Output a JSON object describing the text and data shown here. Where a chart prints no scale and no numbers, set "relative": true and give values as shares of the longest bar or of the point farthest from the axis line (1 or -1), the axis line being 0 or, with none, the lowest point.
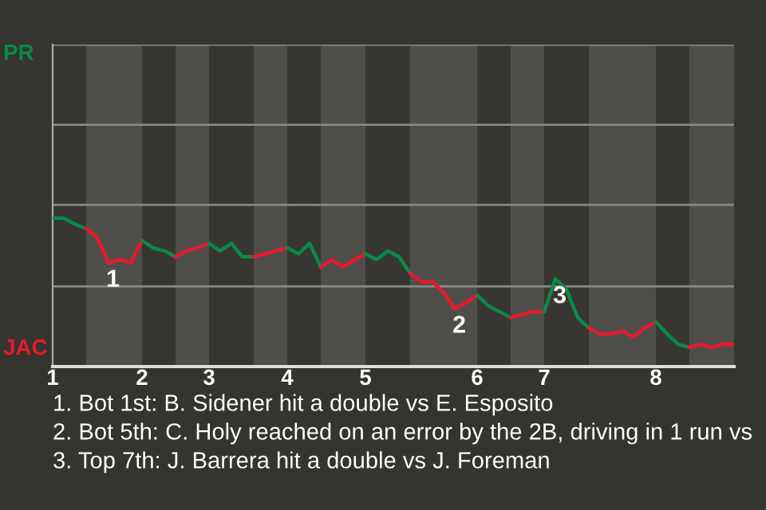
{
  "chart_data": {
    "type": "line",
    "relative": true,
    "categories": [
      "1",
      null,
      null,
      null,
      null,
      null,
      null,
      null,
      "2",
      null,
      null,
      null,
      null,
      null,
      "3",
      null,
      null,
      null,
      null,
      null,
      null,
      "4",
      null,
      null,
      null,
      null,
      null,
      null,
      "5",
      null,
      null,
      null,
      null,
      null,
      null,
      null,
      null,
      null,
      "6",
      null,
      null,
      null,
      null,
      null,
      "7",
      null,
      null,
      null,
      null,
      null,
      null,
      null,
      null,
      null,
      "8",
      null,
      null,
      null,
      null,
      null,
      null,
      null
    ],
    "series": [
      {
        "color": "#0a8a4a",
        "values": [
          1,
          1,
          0.96,
          0.93,
          null,
          null,
          null,
          null,
          null,
          null,
          null,
          null,
          null,
          null,
          null,
          null,
          null,
          null,
          null,
          null,
          null,
          null,
          null,
          null,
          null,
          null,
          null,
          null,
          null,
          null,
          null,
          null,
          null,
          null,
          null,
          null,
          null,
          null,
          null,
          null,
          null,
          null,
          null,
          null,
          null,
          null,
          null,
          null,
          null,
          null,
          null,
          null,
          null,
          null,
          null,
          null,
          null,
          null,
          null,
          null,
          null,
          null
        ]
      },
      {
        "color": "#e8192c",
        "values": [
          null,
          null,
          null,
          0.93,
          0.87,
          0.7,
          0.72,
          0.7,
          0.85,
          null,
          null,
          null,
          null,
          null,
          null,
          null,
          null,
          null,
          null,
          null,
          null,
          null,
          null,
          null,
          null,
          null,
          null,
          null,
          null,
          null,
          null,
          null,
          null,
          null,
          null,
          null,
          null,
          null,
          null,
          null,
          null,
          null,
          null,
          null,
          null,
          null,
          null,
          null,
          null,
          null,
          null,
          null,
          null,
          null,
          null,
          null,
          null,
          null,
          null,
          null,
          null,
          null
        ]
      },
      {
        "color": "#0a8a4a",
        "values": [
          null,
          null,
          null,
          null,
          null,
          null,
          null,
          null,
          0.85,
          0.8,
          0.78,
          0.74,
          null,
          null,
          null,
          null,
          null,
          null,
          null,
          null,
          null,
          null,
          null,
          null,
          null,
          null,
          null,
          null,
          null,
          null,
          null,
          null,
          null,
          null,
          null,
          null,
          null,
          null,
          null,
          null,
          null,
          null,
          null,
          null,
          null,
          null,
          null,
          null,
          null,
          null,
          null,
          null,
          null,
          null,
          null,
          null,
          null,
          null,
          null,
          null,
          null,
          null
        ]
      },
      {
        "color": "#e8192c",
        "values": [
          null,
          null,
          null,
          null,
          null,
          null,
          null,
          null,
          null,
          null,
          null,
          0.74,
          0.78,
          0.8,
          0.83,
          null,
          null,
          null,
          null,
          null,
          null,
          null,
          null,
          null,
          null,
          null,
          null,
          null,
          null,
          null,
          null,
          null,
          null,
          null,
          null,
          null,
          null,
          null,
          null,
          null,
          null,
          null,
          null,
          null,
          null,
          null,
          null,
          null,
          null,
          null,
          null,
          null,
          null,
          null,
          null,
          null,
          null,
          null,
          null,
          null,
          null,
          null
        ]
      },
      {
        "color": "#0a8a4a",
        "values": [
          null,
          null,
          null,
          null,
          null,
          null,
          null,
          null,
          null,
          null,
          null,
          null,
          null,
          null,
          0.83,
          0.78,
          0.83,
          0.74,
          0.74,
          null,
          null,
          null,
          null,
          null,
          null,
          null,
          null,
          null,
          null,
          null,
          null,
          null,
          null,
          null,
          null,
          null,
          null,
          null,
          null,
          null,
          null,
          null,
          null,
          null,
          null,
          null,
          null,
          null,
          null,
          null,
          null,
          null,
          null,
          null,
          null,
          null,
          null,
          null,
          null,
          null,
          null,
          null
        ]
      },
      {
        "color": "#e8192c",
        "values": [
          null,
          null,
          null,
          null,
          null,
          null,
          null,
          null,
          null,
          null,
          null,
          null,
          null,
          null,
          null,
          null,
          null,
          null,
          0.74,
          0.76,
          0.78,
          0.8,
          null,
          null,
          null,
          null,
          null,
          null,
          null,
          null,
          null,
          null,
          null,
          null,
          null,
          null,
          null,
          null,
          null,
          null,
          null,
          null,
          null,
          null,
          null,
          null,
          null,
          null,
          null,
          null,
          null,
          null,
          null,
          null,
          null,
          null,
          null,
          null,
          null,
          null,
          null,
          null
        ]
      },
      {
        "color": "#0a8a4a",
        "values": [
          null,
          null,
          null,
          null,
          null,
          null,
          null,
          null,
          null,
          null,
          null,
          null,
          null,
          null,
          null,
          null,
          null,
          null,
          null,
          null,
          null,
          0.8,
          0.76,
          0.83,
          0.67,
          null,
          null,
          null,
          null,
          null,
          null,
          null,
          null,
          null,
          null,
          null,
          null,
          null,
          null,
          null,
          null,
          null,
          null,
          null,
          null,
          null,
          null,
          null,
          null,
          null,
          null,
          null,
          null,
          null,
          null,
          null,
          null,
          null,
          null,
          null,
          null,
          null
        ]
      },
      {
        "color": "#e8192c",
        "values": [
          null,
          null,
          null,
          null,
          null,
          null,
          null,
          null,
          null,
          null,
          null,
          null,
          null,
          null,
          null,
          null,
          null,
          null,
          null,
          null,
          null,
          null,
          null,
          null,
          0.67,
          0.72,
          0.67,
          0.72,
          0.76,
          null,
          null,
          null,
          null,
          null,
          null,
          null,
          null,
          null,
          null,
          null,
          null,
          null,
          null,
          null,
          null,
          null,
          null,
          null,
          null,
          null,
          null,
          null,
          null,
          null,
          null,
          null,
          null,
          null,
          null,
          null,
          null,
          null
        ]
      },
      {
        "color": "#0a8a4a",
        "values": [
          null,
          null,
          null,
          null,
          null,
          null,
          null,
          null,
          null,
          null,
          null,
          null,
          null,
          null,
          null,
          null,
          null,
          null,
          null,
          null,
          null,
          null,
          null,
          null,
          null,
          null,
          null,
          null,
          0.76,
          0.72,
          0.78,
          0.74,
          0.63,
          null,
          null,
          null,
          null,
          null,
          null,
          null,
          null,
          null,
          null,
          null,
          null,
          null,
          null,
          null,
          null,
          null,
          null,
          null,
          null,
          null,
          null,
          null,
          null,
          null,
          null,
          null,
          null,
          null
        ]
      },
      {
        "color": "#e8192c",
        "values": [
          null,
          null,
          null,
          null,
          null,
          null,
          null,
          null,
          null,
          null,
          null,
          null,
          null,
          null,
          null,
          null,
          null,
          null,
          null,
          null,
          null,
          null,
          null,
          null,
          null,
          null,
          null,
          null,
          null,
          null,
          null,
          null,
          0.63,
          0.57,
          0.57,
          0.5,
          0.39,
          0.43,
          0.48,
          null,
          null,
          null,
          null,
          null,
          null,
          null,
          null,
          null,
          null,
          null,
          null,
          null,
          null,
          null,
          null,
          null,
          null,
          null,
          null,
          null,
          null,
          null
        ]
      },
      {
        "color": "#0a8a4a",
        "values": [
          null,
          null,
          null,
          null,
          null,
          null,
          null,
          null,
          null,
          null,
          null,
          null,
          null,
          null,
          null,
          null,
          null,
          null,
          null,
          null,
          null,
          null,
          null,
          null,
          null,
          null,
          null,
          null,
          null,
          null,
          null,
          null,
          null,
          null,
          null,
          null,
          null,
          null,
          0.48,
          0.41,
          0.37,
          0.33,
          null,
          null,
          null,
          null,
          null,
          null,
          null,
          null,
          null,
          null,
          null,
          null,
          null,
          null,
          null,
          null,
          null,
          null,
          null,
          null
        ]
      },
      {
        "color": "#e8192c",
        "values": [
          null,
          null,
          null,
          null,
          null,
          null,
          null,
          null,
          null,
          null,
          null,
          null,
          null,
          null,
          null,
          null,
          null,
          null,
          null,
          null,
          null,
          null,
          null,
          null,
          null,
          null,
          null,
          null,
          null,
          null,
          null,
          null,
          null,
          null,
          null,
          null,
          null,
          null,
          null,
          null,
          null,
          0.33,
          0.35,
          0.37,
          0.37,
          null,
          null,
          null,
          null,
          null,
          null,
          null,
          null,
          null,
          null,
          null,
          null,
          null,
          null,
          null,
          null,
          null
        ]
      },
      {
        "color": "#0a8a4a",
        "values": [
          null,
          null,
          null,
          null,
          null,
          null,
          null,
          null,
          null,
          null,
          null,
          null,
          null,
          null,
          null,
          null,
          null,
          null,
          null,
          null,
          null,
          null,
          null,
          null,
          null,
          null,
          null,
          null,
          null,
          null,
          null,
          null,
          null,
          null,
          null,
          null,
          null,
          null,
          null,
          null,
          null,
          null,
          null,
          null,
          0.37,
          0.59,
          0.52,
          0.33,
          0.26,
          null,
          null,
          null,
          null,
          null,
          null,
          null,
          null,
          null,
          null,
          null,
          null,
          null
        ]
      },
      {
        "color": "#e8192c",
        "values": [
          null,
          null,
          null,
          null,
          null,
          null,
          null,
          null,
          null,
          null,
          null,
          null,
          null,
          null,
          null,
          null,
          null,
          null,
          null,
          null,
          null,
          null,
          null,
          null,
          null,
          null,
          null,
          null,
          null,
          null,
          null,
          null,
          null,
          null,
          null,
          null,
          null,
          null,
          null,
          null,
          null,
          null,
          null,
          null,
          null,
          null,
          null,
          null,
          0.26,
          0.22,
          0.22,
          0.24,
          0.2,
          0.26,
          0.3,
          null,
          null,
          null,
          null,
          null,
          null,
          null
        ]
      },
      {
        "color": "#0a8a4a",
        "values": [
          null,
          null,
          null,
          null,
          null,
          null,
          null,
          null,
          null,
          null,
          null,
          null,
          null,
          null,
          null,
          null,
          null,
          null,
          null,
          null,
          null,
          null,
          null,
          null,
          null,
          null,
          null,
          null,
          null,
          null,
          null,
          null,
          null,
          null,
          null,
          null,
          null,
          null,
          null,
          null,
          null,
          null,
          null,
          null,
          null,
          null,
          null,
          null,
          null,
          null,
          null,
          null,
          null,
          null,
          0.3,
          0.22,
          0.15,
          0.13,
          null,
          null,
          null,
          null
        ]
      },
      {
        "color": "#e8192c",
        "values": [
          null,
          null,
          null,
          null,
          null,
          null,
          null,
          null,
          null,
          null,
          null,
          null,
          null,
          null,
          null,
          null,
          null,
          null,
          null,
          null,
          null,
          null,
          null,
          null,
          null,
          null,
          null,
          null,
          null,
          null,
          null,
          null,
          null,
          null,
          null,
          null,
          null,
          null,
          null,
          null,
          null,
          null,
          null,
          null,
          null,
          null,
          null,
          null,
          null,
          null,
          null,
          null,
          null,
          null,
          null,
          null,
          null,
          0.13,
          0.15,
          0.13,
          0.15,
          0.15
        ]
      }
    ],
    "ref_lines": [
      {
        "axis": "y",
        "value": 0.54,
        "color": "#8a8886"
      },
      {
        "axis": "y",
        "value": 1.09,
        "color": "#8a8886"
      },
      {
        "axis": "y",
        "value": 1.63,
        "color": "#8a8886"
      },
      {
        "axis": "y",
        "value": 2.17,
        "color": "#8a8886"
      }
    ],
    "annotations": [
      "PR",
      "JAC",
      {
        "text": "1",
        "y": 0.7
      },
      {
        "text": "2",
        "y": 0.39
      },
      {
        "text": "3",
        "y": 0.59
      },
      "1. Bot 1st: B. Sidener hit a double vs E. Esposito",
      "2. Bot 5th: C. Holy reached on an error by the 2B, driving in 1 run vs",
      "3. Top 7th: J. Barrera hit a double vs J. Foreman"
    ]
  }
}
